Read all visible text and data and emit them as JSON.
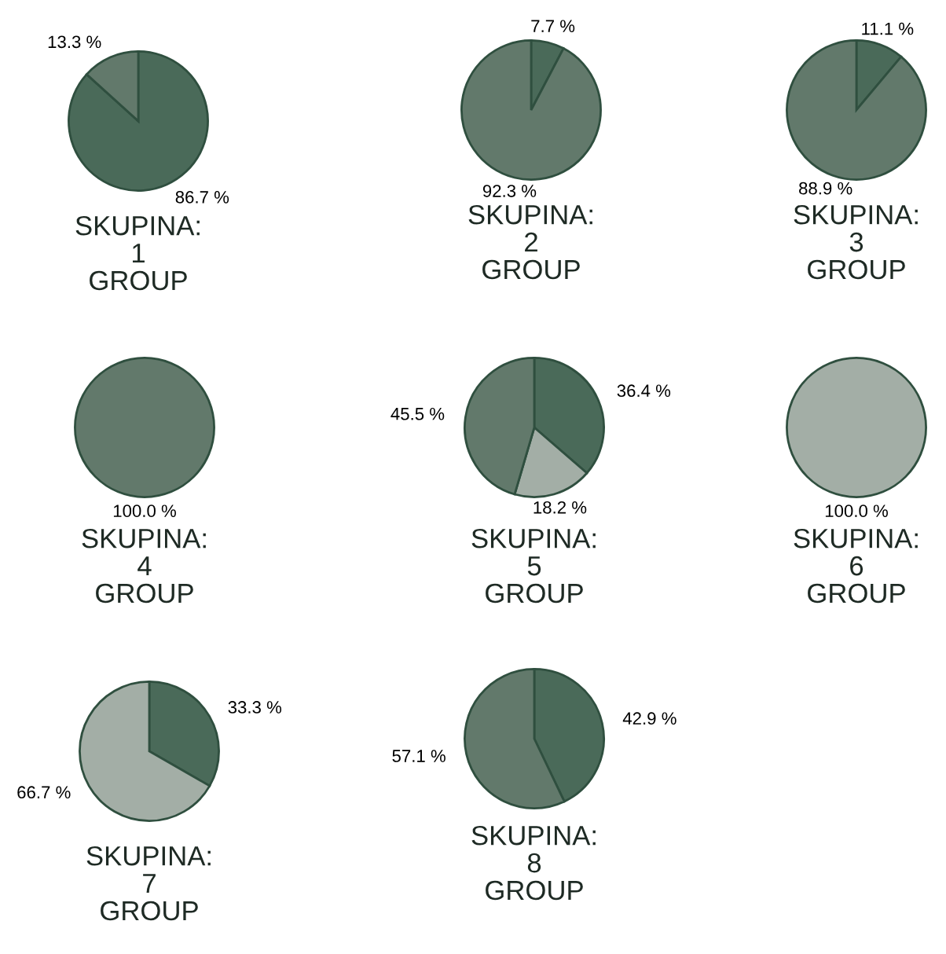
{
  "chart_data": [
    {
      "type": "pie",
      "title": "SKUPINA:\n1\nGROUP",
      "categories": [
        null,
        null
      ],
      "values": [
        86.7,
        13.3
      ],
      "colors": [
        "#4a6a59",
        "#62796b"
      ],
      "value_labels": [
        "86.7 %",
        "13.3 %"
      ]
    },
    {
      "type": "pie",
      "title": "SKUPINA:\n2\nGROUP",
      "categories": [
        null,
        null
      ],
      "values": [
        7.7,
        92.3
      ],
      "colors": [
        "#4a6a59",
        "#62796b"
      ],
      "value_labels": [
        "7.7 %",
        "92.3 %"
      ]
    },
    {
      "type": "pie",
      "title": "SKUPINA:\n3\nGROUP",
      "categories": [
        null,
        null
      ],
      "values": [
        11.1,
        88.9
      ],
      "colors": [
        "#4a6a59",
        "#62796b"
      ],
      "value_labels": [
        "11.1 %",
        "88.9 %"
      ]
    },
    {
      "type": "pie",
      "title": "SKUPINA:\n4\nGROUP",
      "categories": [
        null
      ],
      "values": [
        100.0
      ],
      "colors": [
        "#62796b"
      ],
      "value_labels": [
        "100.0 %"
      ]
    },
    {
      "type": "pie",
      "title": "SKUPINA:\n5\nGROUP",
      "categories": [
        null,
        null,
        null
      ],
      "values": [
        36.4,
        18.2,
        45.5
      ],
      "colors": [
        "#4a6a59",
        "#a3aea6",
        "#62796b"
      ],
      "value_labels": [
        "36.4 %",
        "18.2 %",
        "45.5 %"
      ]
    },
    {
      "type": "pie",
      "title": "SKUPINA:\n6\nGROUP",
      "categories": [
        null
      ],
      "values": [
        100.0
      ],
      "colors": [
        "#a3aea6"
      ],
      "value_labels": [
        "100.0 %"
      ]
    },
    {
      "type": "pie",
      "title": "SKUPINA:\n7\nGROUP",
      "categories": [
        null,
        null
      ],
      "values": [
        33.3,
        66.7
      ],
      "colors": [
        "#4a6a59",
        "#a3aea6"
      ],
      "value_labels": [
        "33.3 %",
        "66.7 %"
      ]
    },
    {
      "type": "pie",
      "title": "SKUPINA:\n8\nGROUP",
      "categories": [
        null,
        null
      ],
      "values": [
        42.9,
        57.1
      ],
      "colors": [
        "#4a6a59",
        "#62796b"
      ],
      "value_labels": [
        "42.9 %",
        "57.1 %"
      ]
    }
  ]
}
